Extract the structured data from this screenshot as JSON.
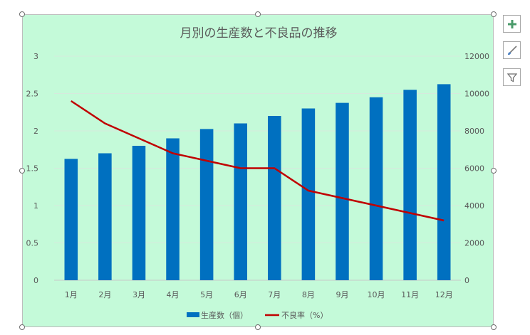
{
  "chart_data": {
    "type": "bar+line",
    "title": "月別の生産数と不良品の推移",
    "categories": [
      "1月",
      "2月",
      "3月",
      "4月",
      "5月",
      "6月",
      "7月",
      "8月",
      "9月",
      "10月",
      "11月",
      "12月"
    ],
    "series": [
      {
        "name": "生産数（個）",
        "type": "bar",
        "axis": "right",
        "color": "#0070c0",
        "values": [
          6500,
          6800,
          7200,
          7600,
          8100,
          8400,
          8800,
          9200,
          9500,
          9800,
          10200,
          10500
        ]
      },
      {
        "name": "不良率（%）",
        "type": "line",
        "axis": "left",
        "color": "#c00000",
        "values": [
          2.4,
          2.1,
          1.9,
          1.7,
          1.6,
          1.5,
          1.5,
          1.2,
          1.1,
          1.0,
          0.9,
          0.8
        ]
      }
    ],
    "y_left": {
      "min": 0,
      "max": 3,
      "ticks": [
        "0",
        "0.5",
        "1",
        "1.5",
        "2",
        "2.5",
        "3"
      ]
    },
    "y_right": {
      "min": 0,
      "max": 12000,
      "ticks": [
        "0",
        "2000",
        "4000",
        "6000",
        "8000",
        "10000",
        "12000"
      ]
    },
    "grid": true,
    "legend": "bottom",
    "background": "#c4fad9"
  },
  "side_buttons": [
    {
      "name": "chart-elements-button",
      "icon": "plus-icon"
    },
    {
      "name": "chart-styles-button",
      "icon": "paintbrush-icon"
    },
    {
      "name": "chart-filters-button",
      "icon": "filter-icon"
    }
  ]
}
